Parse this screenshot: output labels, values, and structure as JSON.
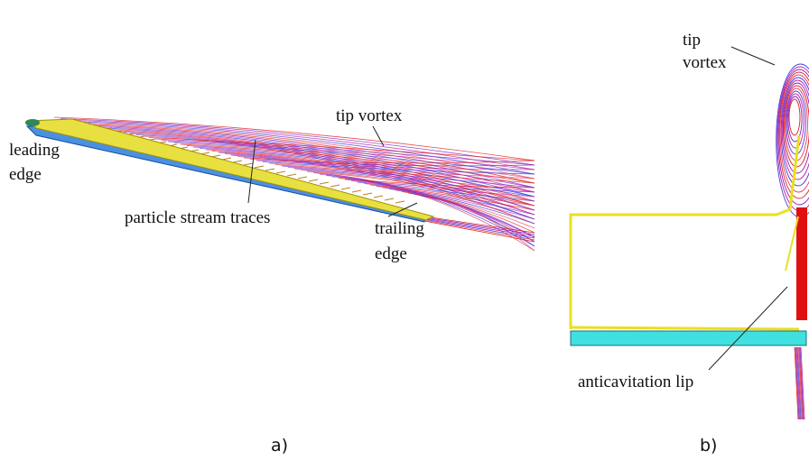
{
  "panels": [
    {
      "label": "a)",
      "annotations": [
        {
          "lines": [
            "tip vortex"
          ]
        },
        {
          "lines": [
            "leading",
            "edge"
          ]
        },
        {
          "lines": [
            "particle stream traces"
          ]
        },
        {
          "lines": [
            "trailing",
            "edge"
          ]
        }
      ]
    },
    {
      "label": "b)",
      "annotations": [
        {
          "lines": [
            "tip",
            "vortex"
          ]
        },
        {
          "lines": [
            "anticavitation lip"
          ]
        }
      ]
    }
  ]
}
